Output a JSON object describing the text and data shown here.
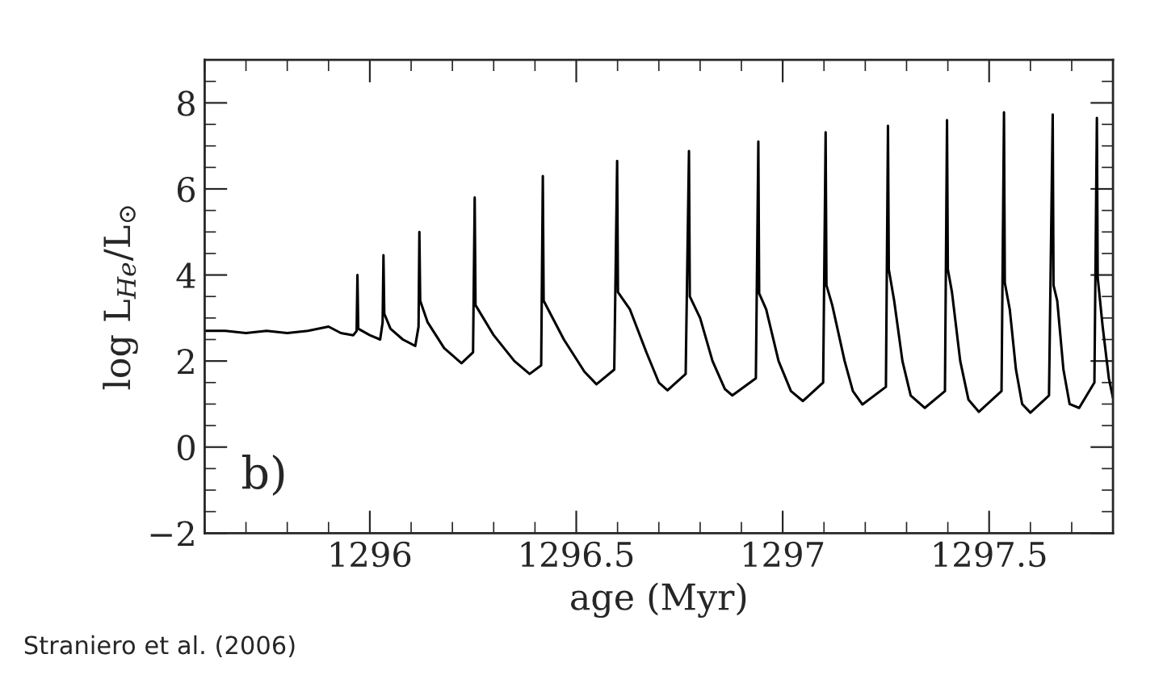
{
  "chart_data": {
    "type": "line",
    "xlabel": "age (Myr)",
    "ylabel": "log L$_{He}$/L$_{⊙}$",
    "annotations": [
      "b)",
      "Straniero et al. (2006)"
    ],
    "xlim": [
      1295.6,
      1297.8
    ],
    "ylim": [
      -2,
      9
    ],
    "xticks": [
      1296,
      1296.5,
      1297,
      1297.5
    ],
    "yticks": [
      {
        "value": -2,
        "label": "−2"
      },
      0,
      2,
      4,
      6,
      8
    ],
    "line_style": "solid",
    "marker": "none",
    "series": [
      {
        "color": "#000000",
        "x": [
          1295.6,
          1295.65,
          1295.7,
          1295.75,
          1295.8,
          1295.85,
          1295.9,
          1295.93,
          1295.96,
          1295.968,
          1295.97,
          1295.972,
          1296.0,
          1296.025,
          1296.031,
          1296.033,
          1296.035,
          1296.05,
          1296.08,
          1296.11,
          1296.118,
          1296.12,
          1296.122,
          1296.14,
          1296.18,
          1296.222,
          1296.25,
          1296.254,
          1296.256,
          1296.3,
          1296.35,
          1296.387,
          1296.415,
          1296.419,
          1296.421,
          1296.47,
          1296.52,
          1296.549,
          1296.592,
          1296.599,
          1296.601,
          1296.63,
          1296.67,
          1296.7,
          1296.721,
          1296.765,
          1296.773,
          1296.775,
          1296.8,
          1296.83,
          1296.86,
          1296.878,
          1296.935,
          1296.941,
          1296.943,
          1296.96,
          1296.99,
          1297.02,
          1297.049,
          1297.098,
          1297.104,
          1297.106,
          1297.12,
          1297.15,
          1297.17,
          1297.193,
          1297.25,
          1297.255,
          1297.257,
          1297.27,
          1297.29,
          1297.31,
          1297.344,
          1297.393,
          1297.398,
          1297.4,
          1297.41,
          1297.43,
          1297.45,
          1297.475,
          1297.53,
          1297.536,
          1297.538,
          1297.55,
          1297.565,
          1297.58,
          1297.6,
          1297.645,
          1297.654,
          1297.656,
          1297.665,
          1297.68,
          1297.695,
          1297.718,
          1297.755,
          1297.761,
          1297.763,
          1297.775,
          1297.79,
          1297.8
        ],
        "values": [
          2.7,
          2.7,
          2.65,
          2.7,
          2.65,
          2.7,
          2.8,
          2.65,
          2.6,
          2.7,
          4.0,
          2.75,
          2.6,
          2.5,
          2.9,
          4.46,
          3.1,
          2.75,
          2.5,
          2.35,
          2.8,
          5.0,
          3.4,
          2.9,
          2.3,
          1.95,
          2.2,
          5.8,
          3.3,
          2.6,
          2.0,
          1.7,
          1.9,
          6.3,
          3.4,
          2.5,
          1.75,
          1.46,
          1.8,
          6.65,
          3.6,
          3.2,
          2.2,
          1.5,
          1.32,
          1.7,
          6.88,
          3.5,
          3.0,
          2.0,
          1.35,
          1.2,
          1.6,
          7.1,
          3.57,
          3.2,
          2.0,
          1.3,
          1.07,
          1.5,
          7.32,
          3.76,
          3.3,
          2.0,
          1.3,
          0.99,
          1.4,
          7.47,
          4.13,
          3.4,
          2.0,
          1.2,
          0.91,
          1.3,
          7.6,
          4.13,
          3.6,
          2.0,
          1.1,
          0.82,
          1.3,
          7.78,
          3.82,
          3.2,
          1.8,
          1.0,
          0.8,
          1.2,
          7.73,
          3.76,
          3.4,
          1.8,
          1.0,
          0.91,
          1.5,
          7.65,
          3.94,
          2.8,
          1.6,
          1.14
        ]
      }
    ]
  }
}
